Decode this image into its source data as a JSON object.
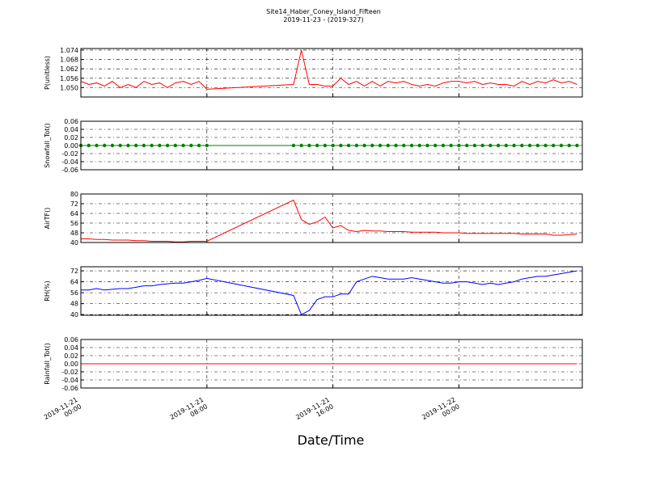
{
  "title": "Site14_Haber_Coney_Island_Fifteen",
  "subtitle": "2019-11-23 - (2019-327)",
  "xlabel": "Date/Time",
  "x": [
    "2019-11-21 00:00",
    "2019-11-21 00:30",
    "2019-11-21 01:00",
    "2019-11-21 01:30",
    "2019-11-21 02:00",
    "2019-11-21 02:30",
    "2019-11-21 03:00",
    "2019-11-21 03:30",
    "2019-11-21 04:00",
    "2019-11-21 04:30",
    "2019-11-21 05:00",
    "2019-11-21 05:30",
    "2019-11-21 06:00",
    "2019-11-21 06:30",
    "2019-11-21 07:00",
    "2019-11-21 07:30",
    "2019-11-21 08:00",
    "2019-11-21 13:30",
    "2019-11-21 14:00",
    "2019-11-21 14:30",
    "2019-11-21 15:00",
    "2019-11-21 15:30",
    "2019-11-21 16:00",
    "2019-11-21 16:30",
    "2019-11-21 17:00",
    "2019-11-21 17:30",
    "2019-11-21 18:00",
    "2019-11-21 18:30",
    "2019-11-21 19:00",
    "2019-11-21 19:30",
    "2019-11-21 20:00",
    "2019-11-21 20:30",
    "2019-11-21 21:00",
    "2019-11-21 21:30",
    "2019-11-21 22:00",
    "2019-11-21 22:30",
    "2019-11-21 23:00",
    "2019-11-21 23:30",
    "2019-11-22 00:00",
    "2019-11-22 00:30",
    "2019-11-22 01:00",
    "2019-11-22 01:30",
    "2019-11-22 02:00",
    "2019-11-22 02:30",
    "2019-11-22 03:00",
    "2019-11-22 03:30",
    "2019-11-22 04:00",
    "2019-11-22 04:30",
    "2019-11-22 05:00",
    "2019-11-22 05:30",
    "2019-11-22 06:00",
    "2019-11-22 06:30",
    "2019-11-22 07:00",
    "2019-11-22 07:30"
  ],
  "xlim": [
    "2019-11-21 00:00",
    "2019-11-22 07:50"
  ],
  "xticks": [
    "2019-11-21 00:00",
    "2019-11-21 08:00",
    "2019-11-21 16:00",
    "2019-11-22 00:00"
  ],
  "chart_data": [
    {
      "type": "line",
      "ylabel": "P(unitless)",
      "color": "#ff0000",
      "grid": true,
      "ylim": [
        1.044,
        1.075
      ],
      "yticks": [
        {
          "value": 1.05,
          "label": "1.050"
        },
        {
          "value": 1.056,
          "label": "1.056"
        },
        {
          "value": 1.062,
          "label": "1.062"
        },
        {
          "value": 1.068,
          "label": "1.068"
        },
        {
          "value": 1.074,
          "label": "1.074"
        }
      ],
      "values": [
        1.054,
        1.052,
        1.053,
        1.051,
        1.054,
        1.05,
        1.052,
        1.05,
        1.054,
        1.052,
        1.053,
        1.05,
        1.053,
        1.054,
        1.052,
        1.054,
        1.049,
        1.052,
        1.074,
        1.052,
        1.052,
        1.051,
        1.051,
        1.056,
        1.052,
        1.054,
        1.051,
        1.054,
        1.051,
        1.054,
        1.053,
        1.054,
        1.052,
        1.051,
        1.052,
        1.051,
        1.053,
        1.054,
        1.054,
        1.053,
        1.054,
        1.052,
        1.053,
        1.052,
        1.052,
        1.051,
        1.054,
        1.052,
        1.054,
        1.053,
        1.055,
        1.053,
        1.054,
        1.052
      ]
    },
    {
      "type": "line",
      "ylabel": "Snowfall_Tot()",
      "color": "#008000",
      "marker": true,
      "grid": true,
      "ylim": [
        -0.06,
        0.06
      ],
      "yticks": [
        -0.06,
        -0.04,
        -0.02,
        {
          "value": 0,
          "label": "0.00"
        },
        0.02,
        0.04,
        0.06
      ],
      "values": [
        0,
        0,
        0,
        0,
        0,
        0,
        0,
        0,
        0,
        0,
        0,
        0,
        0,
        0,
        0,
        0,
        0,
        0,
        0,
        0,
        0,
        0,
        0,
        0,
        0,
        0,
        0,
        0,
        0,
        0,
        0,
        0,
        0,
        0,
        0,
        0,
        0,
        0,
        0,
        0,
        0,
        0,
        0,
        0,
        0,
        0,
        0,
        0,
        0,
        0,
        0,
        0,
        0,
        0
      ]
    },
    {
      "type": "line",
      "ylabel": "AirTF()",
      "color": "#ff0000",
      "grid": true,
      "ylim": [
        40,
        80
      ],
      "yticks": [
        40,
        48,
        56,
        64,
        72,
        80
      ],
      "values": [
        43,
        43,
        42.5,
        42.5,
        42,
        42,
        42,
        41.5,
        41.5,
        41,
        41,
        41,
        40.5,
        40.5,
        41,
        41,
        41,
        75,
        59,
        55,
        57,
        61,
        52,
        54,
        50,
        49,
        50,
        49.5,
        49.5,
        49,
        49,
        49,
        48.5,
        48.5,
        48.5,
        48.5,
        48,
        48,
        48,
        47.5,
        47.5,
        47.5,
        47.5,
        47.5,
        47.5,
        47.5,
        47,
        47,
        47,
        47,
        46,
        46,
        46.5,
        47
      ]
    },
    {
      "type": "line",
      "ylabel": "RH(%)",
      "color": "#0000ff",
      "grid": true,
      "ylim": [
        39.5,
        75
      ],
      "yticks": [
        40,
        48,
        56,
        64,
        72
      ],
      "values": [
        58,
        58,
        59,
        58,
        58.5,
        59,
        59,
        60,
        61,
        61,
        62,
        62.5,
        63,
        63,
        64,
        65,
        66.5,
        54,
        40,
        43,
        51,
        53,
        53,
        55,
        55,
        64,
        66,
        68,
        67,
        66,
        66,
        66,
        67,
        66,
        65,
        64,
        63,
        63,
        64,
        64,
        63,
        62,
        63,
        62,
        63,
        64,
        66,
        67,
        68,
        68,
        69,
        70,
        71,
        72
      ]
    },
    {
      "type": "line",
      "ylabel": "Rainfall_Tot()",
      "color": "#ff0000",
      "grid": true,
      "ylim": [
        -0.06,
        0.06
      ],
      "yticks": [
        -0.06,
        -0.04,
        -0.02,
        {
          "value": 0,
          "label": "0.00"
        },
        0.02,
        0.04,
        0.06
      ],
      "values": [
        0,
        0,
        0,
        0,
        0,
        0,
        0,
        0,
        0,
        0,
        0,
        0,
        0,
        0,
        0,
        0,
        0,
        0,
        0,
        0,
        0,
        0,
        0,
        0,
        0,
        0,
        0,
        0,
        0,
        0,
        0,
        0,
        0,
        0,
        0,
        0,
        0,
        0,
        0,
        0,
        0,
        0,
        0,
        0,
        0,
        0,
        0,
        0,
        0,
        0,
        0,
        0,
        0,
        0
      ]
    }
  ]
}
